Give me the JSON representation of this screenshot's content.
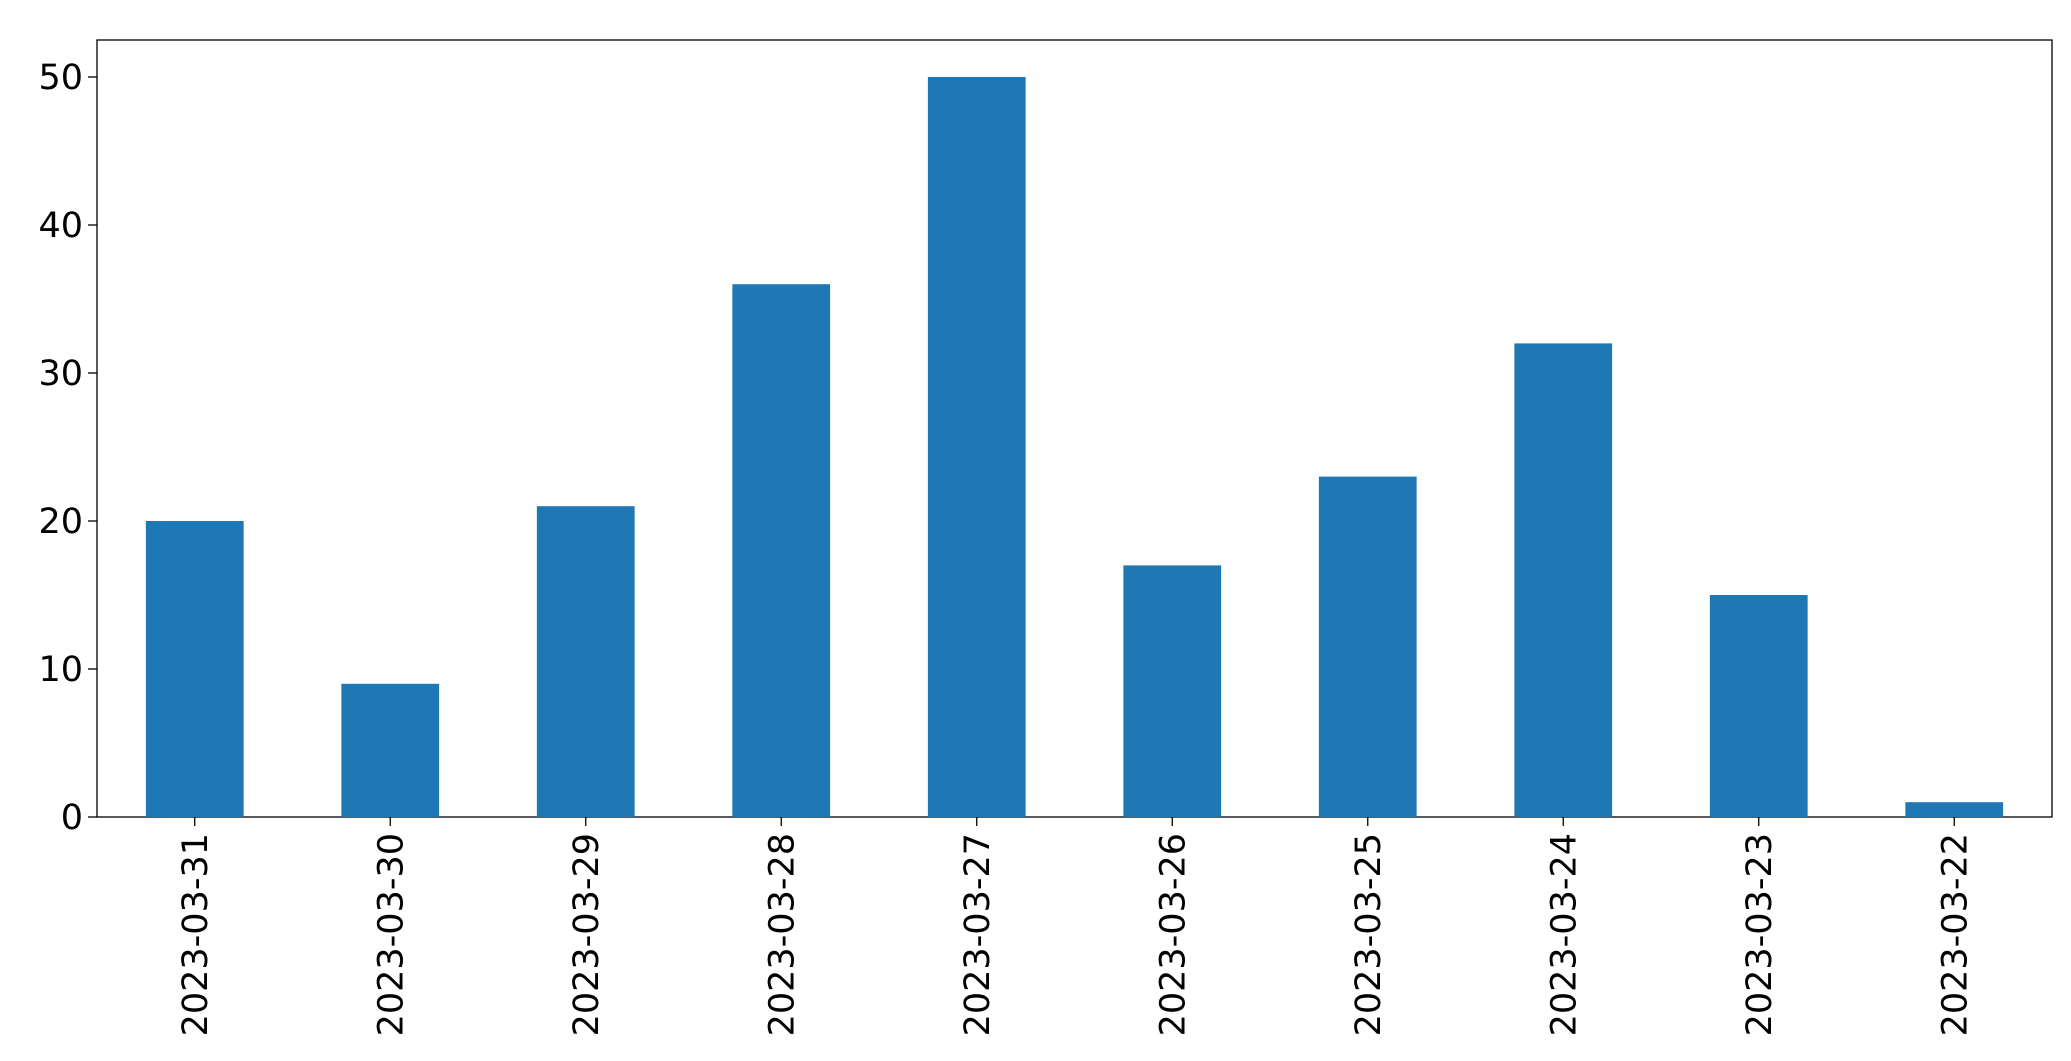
{
  "chart_data": {
    "type": "bar",
    "categories": [
      "2023-03-31",
      "2023-03-30",
      "2023-03-29",
      "2023-03-28",
      "2023-03-27",
      "2023-03-26",
      "2023-03-25",
      "2023-03-24",
      "2023-03-23",
      "2023-03-22"
    ],
    "values": [
      20,
      9,
      21,
      36,
      50,
      17,
      23,
      32,
      15,
      1
    ],
    "color": "#1f77b4",
    "ylim": [
      0,
      52.5
    ],
    "yticks": [
      0,
      10,
      20,
      30,
      40,
      50
    ],
    "grid": false
  }
}
